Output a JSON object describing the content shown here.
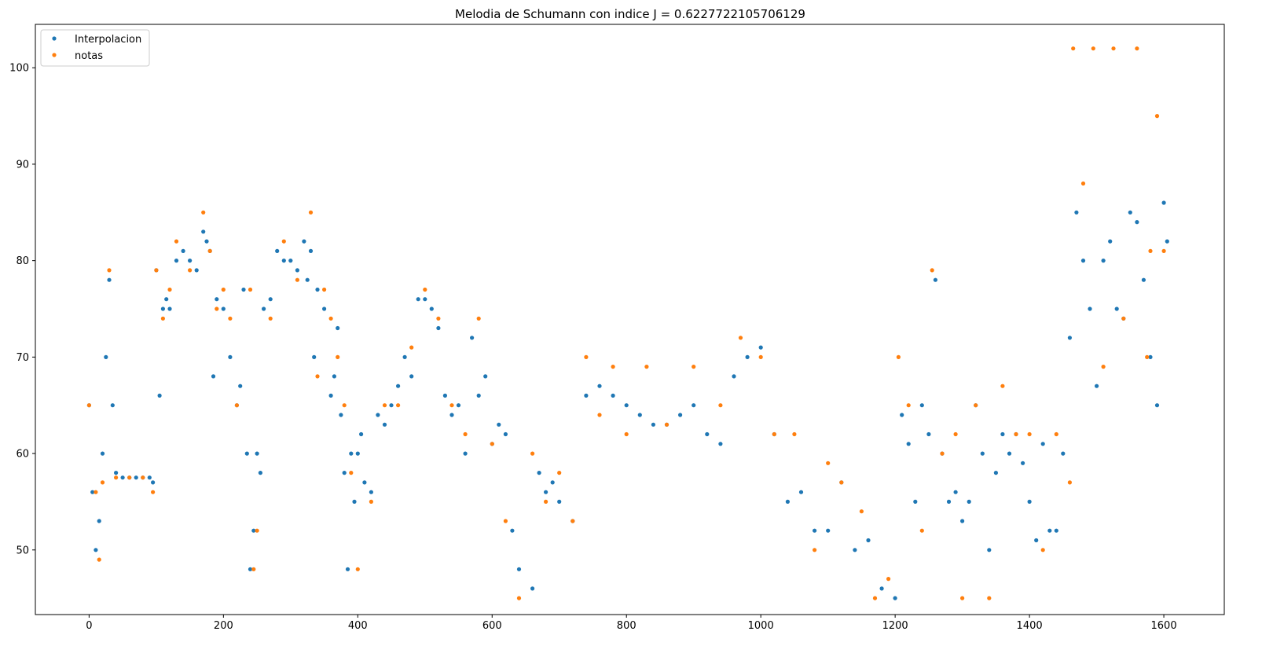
{
  "chart_data": {
    "type": "scatter",
    "title": "Melodia de Schumann con indice J = 0.6227722105706129",
    "xlabel": "",
    "ylabel": "",
    "xlim": [
      -80,
      1690
    ],
    "ylim": [
      43.3,
      104.5
    ],
    "xticks": [
      0,
      200,
      400,
      600,
      800,
      1000,
      1200,
      1400,
      1600
    ],
    "yticks": [
      50,
      60,
      70,
      80,
      90,
      100
    ],
    "grid": false,
    "legend": "top-left",
    "colors": {
      "interpolacion": "#1f77b4",
      "notas": "#ff7f0e"
    },
    "series": [
      {
        "name": "Interpolacion",
        "color": "#1f77b4",
        "x": [
          0,
          5,
          10,
          15,
          20,
          25,
          30,
          35,
          40,
          50,
          60,
          70,
          80,
          90,
          95,
          100,
          105,
          110,
          115,
          120,
          130,
          140,
          150,
          160,
          170,
          175,
          180,
          185,
          190,
          200,
          210,
          220,
          225,
          230,
          235,
          240,
          245,
          250,
          255,
          260,
          270,
          280,
          290,
          300,
          310,
          320,
          325,
          330,
          335,
          340,
          350,
          360,
          365,
          370,
          375,
          380,
          385,
          390,
          395,
          400,
          405,
          410,
          420,
          430,
          440,
          450,
          460,
          470,
          480,
          490,
          500,
          510,
          520,
          530,
          540,
          550,
          560,
          570,
          580,
          590,
          600,
          610,
          620,
          630,
          640,
          660,
          670,
          680,
          690,
          700,
          720,
          740,
          760,
          780,
          800,
          820,
          840,
          860,
          880,
          900,
          920,
          940,
          960,
          980,
          1000,
          1020,
          1040,
          1060,
          1080,
          1100,
          1120,
          1140,
          1160,
          1180,
          1200,
          1210,
          1220,
          1230,
          1240,
          1250,
          1260,
          1270,
          1280,
          1290,
          1300,
          1310,
          1320,
          1330,
          1340,
          1350,
          1360,
          1370,
          1380,
          1390,
          1400,
          1410,
          1420,
          1430,
          1440,
          1450,
          1460,
          1470,
          1480,
          1490,
          1500,
          1510,
          1520,
          1530,
          1540,
          1550,
          1560,
          1570,
          1580,
          1590,
          1600,
          1605
        ],
        "y": [
          65,
          56,
          50,
          53,
          60,
          70,
          78,
          65,
          58,
          57.5,
          57.5,
          57.5,
          57.5,
          57.5,
          57,
          79,
          66,
          75,
          76,
          75,
          80,
          81,
          80,
          79,
          83,
          82,
          81,
          68,
          76,
          75,
          70,
          65,
          67,
          77,
          60,
          48,
          52,
          60,
          58,
          75,
          76,
          81,
          80,
          80,
          79,
          82,
          78,
          81,
          70,
          77,
          75,
          66,
          68,
          73,
          64,
          58,
          48,
          60,
          55,
          60,
          62,
          57,
          56,
          64,
          63,
          65,
          67,
          70,
          68,
          76,
          76,
          75,
          73,
          66,
          64,
          65,
          60,
          72,
          66,
          68,
          61,
          63,
          62,
          52,
          48,
          46,
          58,
          56,
          57,
          55,
          53,
          66,
          67,
          66,
          65,
          64,
          63,
          63,
          64,
          65,
          62,
          61,
          68,
          70,
          71,
          62,
          55,
          56,
          52,
          52,
          57,
          50,
          51,
          46,
          45,
          64,
          61,
          55,
          65,
          62,
          78,
          60,
          55,
          56,
          53,
          55,
          65,
          60,
          50,
          58,
          62,
          60,
          62,
          59,
          55,
          51,
          61,
          52,
          52,
          60,
          72,
          85,
          80,
          75,
          67,
          80,
          82,
          75,
          74,
          85,
          84,
          78,
          70,
          65,
          86,
          82
        ]
      },
      {
        "name": "notas",
        "color": "#ff7f0e",
        "x": [
          0,
          10,
          15,
          20,
          30,
          40,
          60,
          80,
          95,
          100,
          110,
          120,
          130,
          150,
          170,
          180,
          190,
          200,
          210,
          220,
          240,
          245,
          250,
          270,
          290,
          310,
          330,
          340,
          350,
          360,
          370,
          380,
          390,
          400,
          420,
          440,
          460,
          480,
          500,
          520,
          540,
          560,
          580,
          600,
          620,
          640,
          660,
          680,
          700,
          720,
          740,
          760,
          780,
          800,
          830,
          860,
          900,
          940,
          970,
          1000,
          1020,
          1050,
          1080,
          1100,
          1120,
          1150,
          1170,
          1190,
          1205,
          1220,
          1240,
          1255,
          1270,
          1290,
          1300,
          1320,
          1340,
          1360,
          1380,
          1400,
          1420,
          1440,
          1460,
          1465,
          1480,
          1495,
          1510,
          1525,
          1540,
          1560,
          1575,
          1580,
          1590,
          1600
        ],
        "y": [
          65,
          56,
          49,
          57,
          79,
          57.5,
          57.5,
          57.5,
          56,
          79,
          74,
          77,
          82,
          79,
          85,
          81,
          75,
          77,
          74,
          65,
          77,
          48,
          52,
          74,
          82,
          78,
          85,
          68,
          77,
          74,
          70,
          65,
          58,
          48,
          55,
          65,
          65,
          71,
          77,
          74,
          65,
          62,
          74,
          61,
          53,
          45,
          60,
          55,
          58,
          53,
          70,
          64,
          69,
          62,
          69,
          63,
          69,
          65,
          72,
          70,
          62,
          62,
          50,
          59,
          57,
          54,
          45,
          47,
          70,
          65,
          52,
          79,
          60,
          62,
          45,
          65,
          45,
          67,
          62,
          62,
          50,
          62,
          57,
          102,
          88,
          102,
          69,
          102,
          74,
          102,
          70,
          81,
          95,
          81
        ]
      }
    ]
  }
}
